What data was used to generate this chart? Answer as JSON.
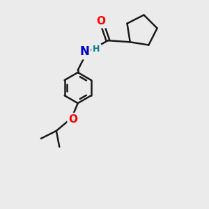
{
  "background_color": "#ebebeb",
  "bond_color": "#1a1a1a",
  "bond_width": 1.8,
  "atom_colors": {
    "O_carbonyl": "#ff0000",
    "O_ether": "#ff0000",
    "N": "#0000cd",
    "H": "#008080",
    "C": "#1a1a1a"
  },
  "font_size_atom": 11,
  "font_size_H": 9,
  "xlim": [
    -2.5,
    2.5
  ],
  "ylim": [
    -4.0,
    2.8
  ]
}
